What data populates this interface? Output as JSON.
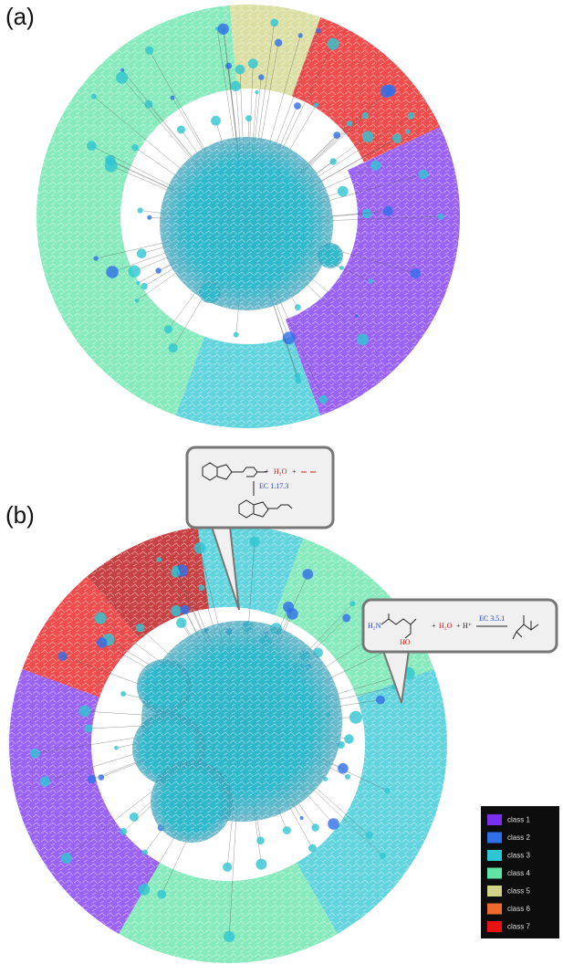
{
  "panels": [
    {
      "label": "(a)"
    },
    {
      "label": "(b)"
    }
  ],
  "callouts": [
    {
      "water": "H₂O",
      "enzyme": "EC 1.17.3"
    },
    {
      "amine": "H₂N",
      "acid": "HO",
      "water": "H₂O",
      "proton": "H⁺",
      "enzyme": "EC 3.5.1"
    }
  ],
  "legend": {
    "items": [
      {
        "name": "class 1",
        "color": "#7a2ff0"
      },
      {
        "name": "class 2",
        "color": "#2f6fe8"
      },
      {
        "name": "class 3",
        "color": "#2ec6d2"
      },
      {
        "name": "class 4",
        "color": "#5fe3a6"
      },
      {
        "name": "class 5",
        "color": "#cfd486"
      },
      {
        "name": "class 6",
        "color": "#ec6a2c"
      },
      {
        "name": "class 7",
        "color": "#e81212"
      }
    ]
  }
}
